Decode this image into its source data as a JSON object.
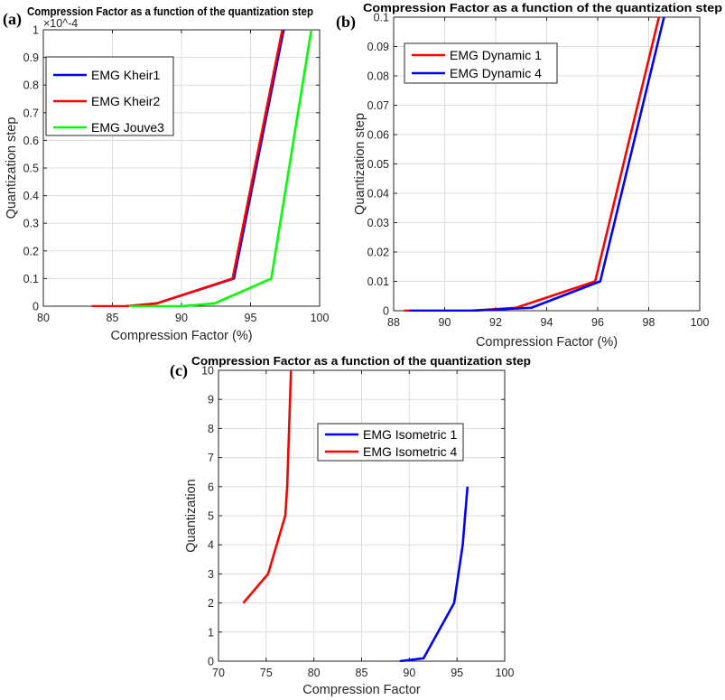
{
  "chart_data": [
    {
      "panel_label": "(a)",
      "type": "line",
      "title": "Compression Factor as a function of the quantization step",
      "xlabel": "Compression Factor (%)",
      "ylabel": "Quantization step",
      "y_multiplier": "×10^-4",
      "xlim": [
        80,
        100
      ],
      "ylim": [
        0,
        1
      ],
      "xticks": [
        "80",
        "85",
        "90",
        "95",
        "100"
      ],
      "yticks": [
        "0",
        "0.1",
        "0.2",
        "0.3",
        "0.4",
        "0.5",
        "0.6",
        "0.7",
        "0.8",
        "0.9",
        "1"
      ],
      "grid": true,
      "legend": "top-left",
      "series": [
        {
          "name": "EMG Kheir1",
          "color": "#0000ff",
          "x": [
            86,
            88.2,
            93.8,
            97.4
          ],
          "y": [
            0,
            0.01,
            0.1,
            1
          ]
        },
        {
          "name": "EMG Kheir2",
          "color": "#ff0000",
          "x": [
            83.5,
            86,
            88.2,
            93.7,
            97.3
          ],
          "y": [
            0,
            0,
            0.01,
            0.1,
            1
          ]
        },
        {
          "name": "EMG Jouve3",
          "color": "#00ff00",
          "x": [
            86.2,
            90,
            92.4,
            96.5,
            99.4
          ],
          "y": [
            0,
            0,
            0.01,
            0.1,
            1
          ]
        }
      ]
    },
    {
      "panel_label": "(b)",
      "type": "line",
      "title": "Compression Factor as a function of the quantization step",
      "xlabel": "Compression Factor (%)",
      "ylabel": "Quantization step",
      "xlim": [
        88,
        100
      ],
      "ylim": [
        0,
        0.1
      ],
      "xticks": [
        "88",
        "90",
        "92",
        "94",
        "96",
        "98",
        "100"
      ],
      "yticks": [
        "0",
        "0.01",
        "0.02",
        "0.03",
        "0.04",
        "0.05",
        "0.06",
        "0.07",
        "0.08",
        "0.09",
        "0.1"
      ],
      "grid": true,
      "legend": "top-left",
      "series": [
        {
          "name": "EMG Dynamic 1",
          "color": "#ff0000",
          "x": [
            88.4,
            91,
            92.8,
            95.9,
            98.4
          ],
          "y": [
            0,
            0,
            0.001,
            0.01,
            0.1
          ]
        },
        {
          "name": "EMG Dynamic 4",
          "color": "#0000ff",
          "x": [
            88.6,
            91,
            93.4,
            96.1,
            98.6
          ],
          "y": [
            0,
            0,
            0.001,
            0.01,
            0.1
          ]
        }
      ]
    },
    {
      "panel_label": "(c)",
      "type": "line",
      "title": "Compression Factor as a function of the quantization step",
      "xlabel": "Compression Factor",
      "ylabel": "Quantization",
      "xlim": [
        70,
        100
      ],
      "ylim": [
        0,
        10
      ],
      "xticks": [
        "70",
        "75",
        "80",
        "85",
        "90",
        "95",
        "100"
      ],
      "yticks": [
        "0",
        "1",
        "2",
        "3",
        "4",
        "5",
        "6",
        "7",
        "8",
        "9",
        "10"
      ],
      "grid": true,
      "legend": "top-right",
      "series": [
        {
          "name": "EMG Isometric 1",
          "color": "#0000ff",
          "x": [
            89,
            91.5,
            94.7,
            95.6,
            96.1
          ],
          "y": [
            0,
            0.1,
            2,
            4,
            6
          ]
        },
        {
          "name": "EMG Isometric 4",
          "color": "#ff0000",
          "x": [
            72.6,
            75.2,
            77,
            77.2,
            77.6
          ],
          "y": [
            2,
            3,
            5,
            6,
            10
          ]
        }
      ]
    }
  ]
}
